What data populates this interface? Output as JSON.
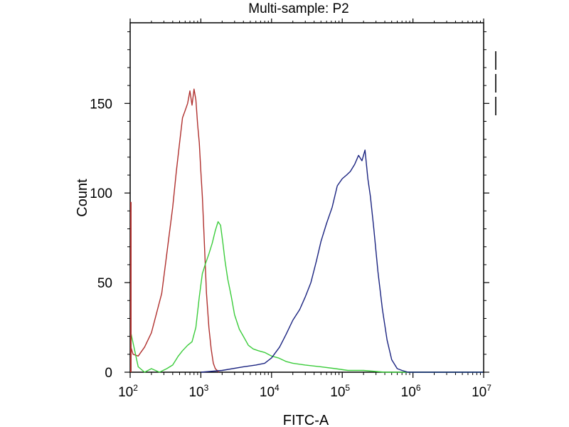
{
  "chart_data": {
    "type": "line",
    "title": "Multi-sample: P2",
    "xlabel": "FITC-A",
    "ylabel": "Count",
    "x_scale": "log",
    "xlim": [
      100,
      10000000
    ],
    "ylim": [
      0,
      195
    ],
    "x_ticks": [
      {
        "base": "10",
        "exp": "2",
        "value": 100
      },
      {
        "base": "10",
        "exp": "3",
        "value": 1000
      },
      {
        "base": "10",
        "exp": "4",
        "value": 10000
      },
      {
        "base": "10",
        "exp": "5",
        "value": 100000
      },
      {
        "base": "10",
        "exp": "6",
        "value": 1000000
      },
      {
        "base": "10",
        "exp": "7",
        "value": 10000000
      }
    ],
    "y_ticks": [
      0,
      50,
      100,
      150
    ],
    "legend": {
      "placement": "top-right",
      "entry_count": 3
    },
    "series": [
      {
        "color": "#b0302e",
        "x": [
          100,
          110,
          130,
          160,
          200,
          240,
          280,
          320,
          360,
          400,
          450,
          500,
          550,
          600,
          650,
          700,
          750,
          800,
          850,
          900,
          950,
          1000,
          1050,
          1100,
          1150,
          1200,
          1300,
          1400,
          1500,
          1600,
          1700,
          1800
        ],
        "y": [
          14,
          10,
          9,
          14,
          22,
          34,
          44,
          62,
          78,
          92,
          112,
          128,
          142,
          146,
          150,
          157,
          149,
          158,
          152,
          138,
          128,
          112,
          98,
          80,
          62,
          44,
          25,
          13,
          5,
          2,
          1,
          0
        ]
      },
      {
        "color": "#3bcc3b",
        "x": [
          100,
          130,
          160,
          200,
          260,
          330,
          400,
          480,
          550,
          650,
          750,
          850,
          950,
          1050,
          1150,
          1300,
          1450,
          1600,
          1750,
          1900,
          2050,
          2200,
          2400,
          2700,
          3000,
          3500,
          4000,
          4700,
          5500,
          6500,
          8000,
          10000,
          12500,
          16000,
          20000,
          30000,
          50000,
          80000,
          120000,
          200000,
          400000,
          1000000,
          3000000,
          10000000
        ],
        "y": [
          22,
          3,
          0,
          2,
          0,
          2,
          4,
          9,
          12,
          15,
          17,
          25,
          42,
          55,
          60,
          66,
          72,
          79,
          84,
          82,
          72,
          62,
          52,
          42,
          32,
          24,
          20,
          15,
          13,
          12,
          11,
          9,
          8,
          6,
          5,
          4,
          3,
          2,
          1,
          1,
          0,
          0,
          0,
          0
        ]
      },
      {
        "color": "#1a2380",
        "x": [
          1000,
          2000,
          4000,
          6000,
          8000,
          10000,
          13000,
          16000,
          20000,
          25000,
          30000,
          36000,
          43000,
          50000,
          60000,
          72000,
          85000,
          100000,
          115000,
          130000,
          150000,
          170000,
          190000,
          210000,
          230000,
          250000,
          280000,
          320000,
          370000,
          430000,
          500000,
          600000,
          700000,
          850000,
          1000000,
          1500000,
          3000000,
          10000000
        ],
        "y": [
          0,
          1,
          3,
          4,
          5,
          8,
          14,
          21,
          29,
          35,
          42,
          50,
          62,
          73,
          83,
          92,
          104,
          108,
          110,
          112,
          116,
          121,
          118,
          124,
          108,
          98,
          80,
          56,
          35,
          18,
          7,
          2,
          1,
          0,
          0,
          0,
          0,
          0
        ]
      }
    ]
  }
}
